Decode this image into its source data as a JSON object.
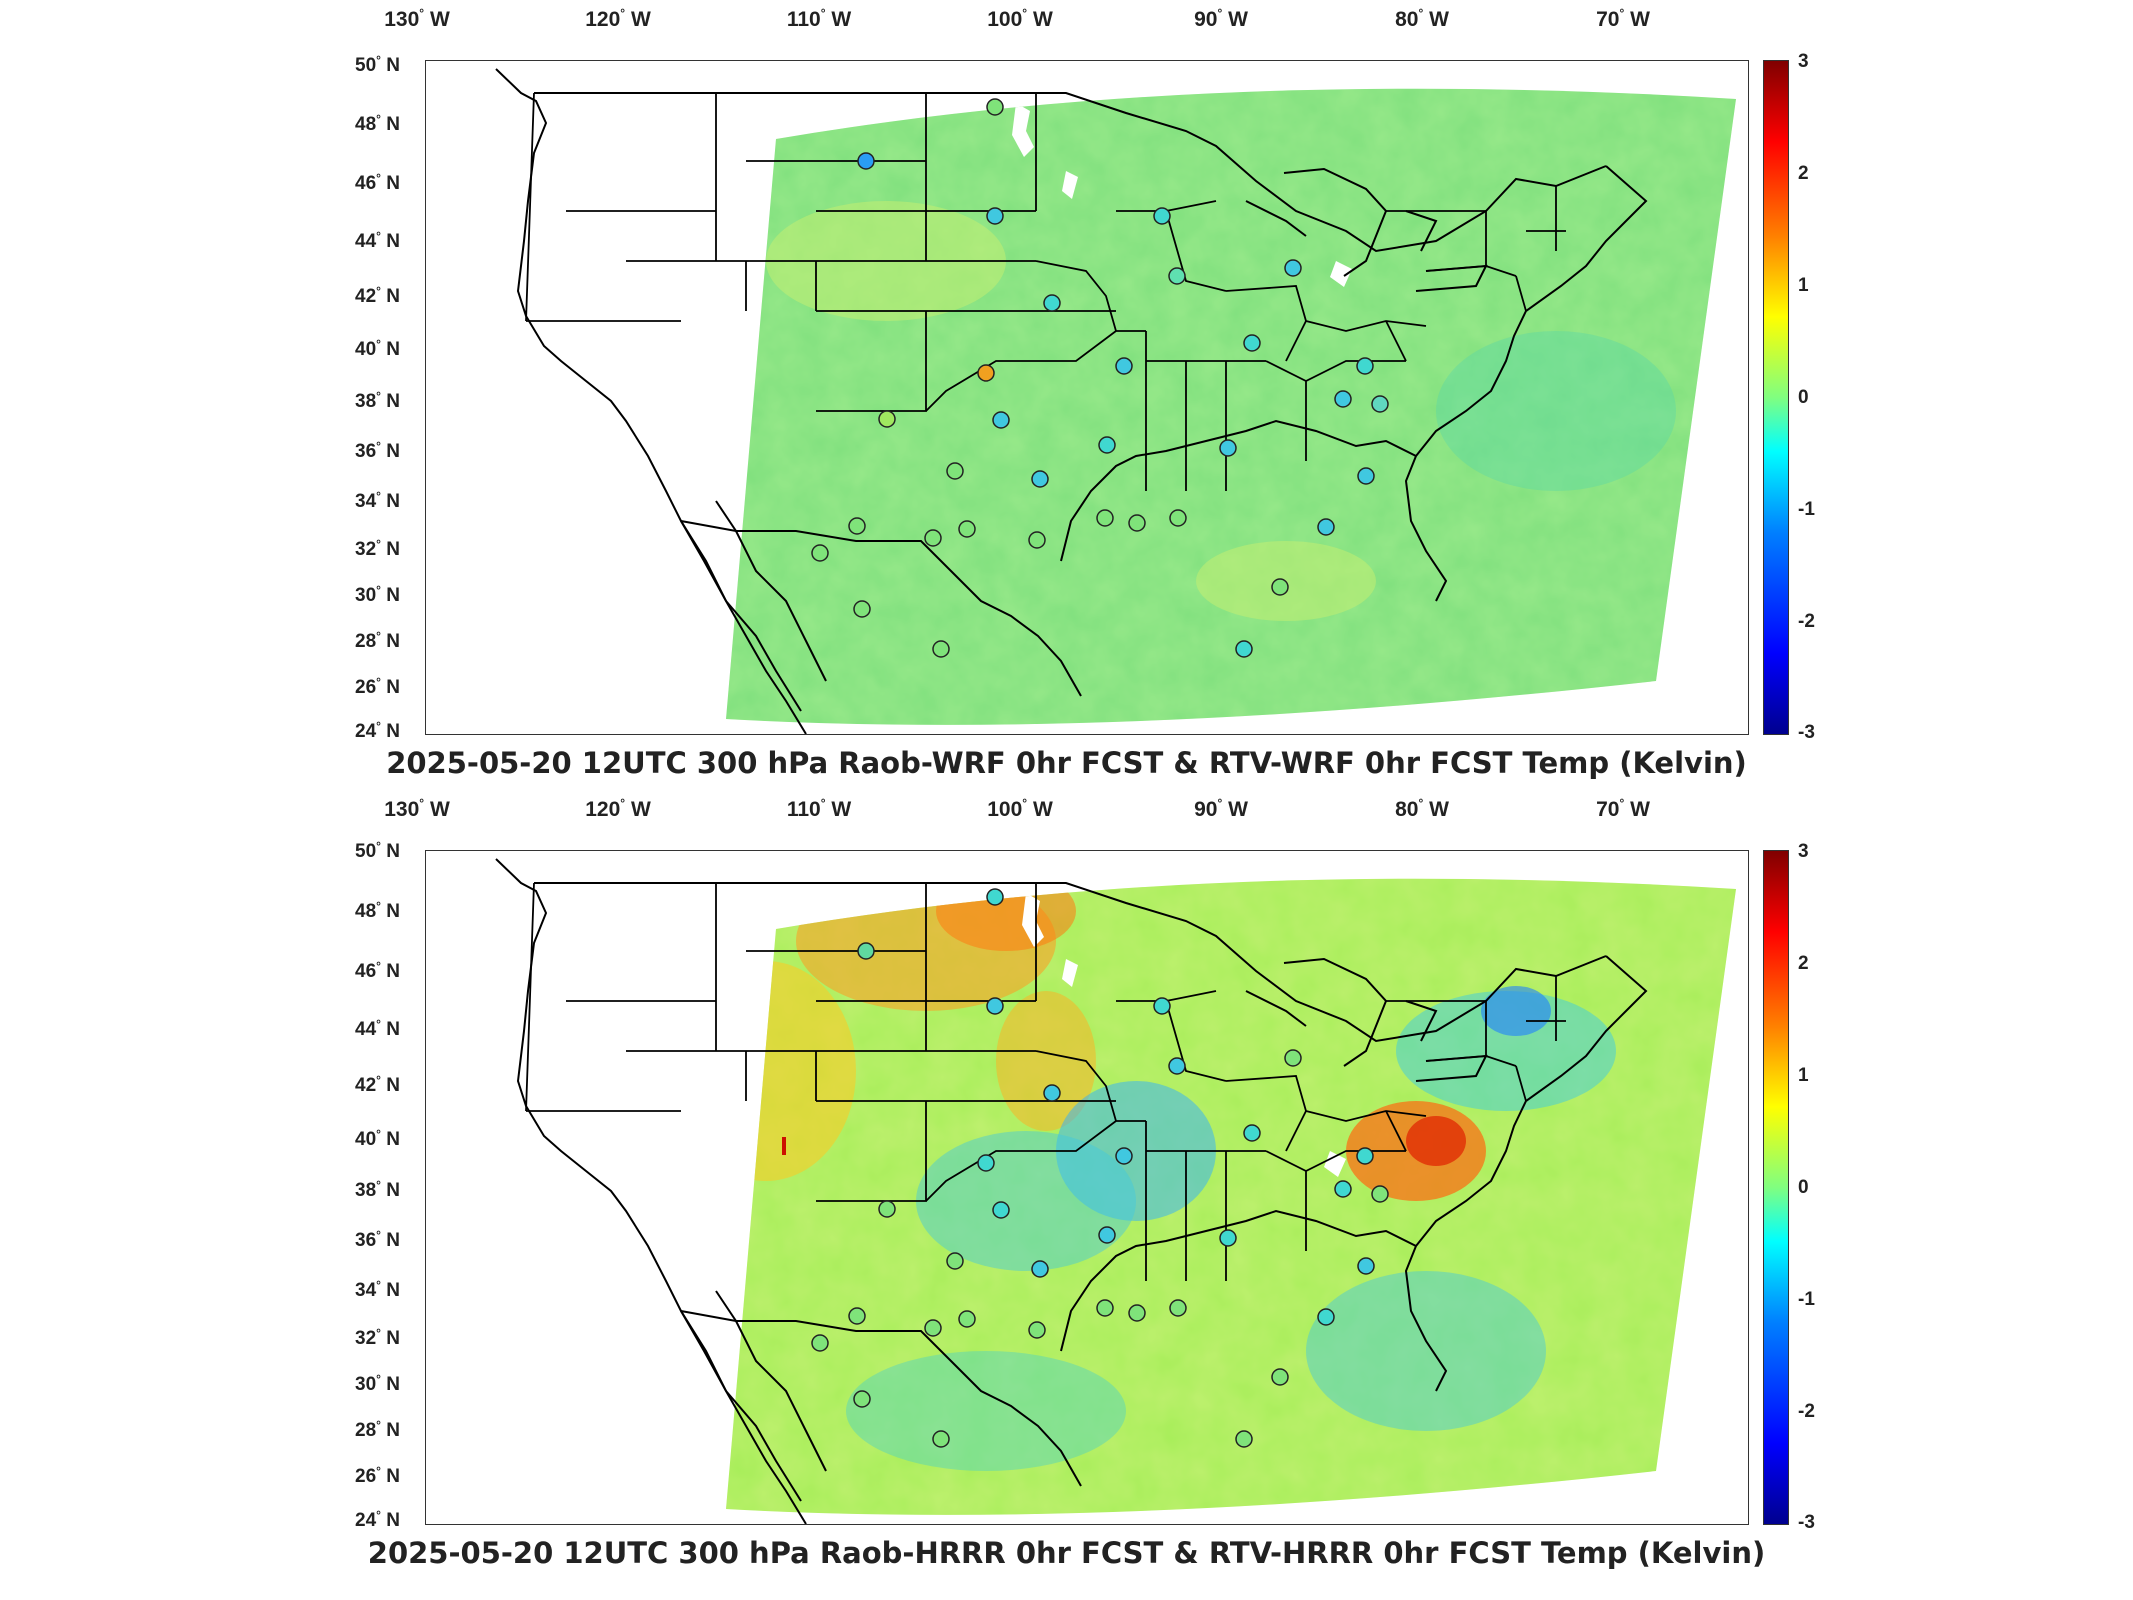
{
  "lon_labels": [
    "130",
    "120",
    "110",
    "100",
    "90",
    "80",
    "70"
  ],
  "lon_hemi": "W",
  "lat_labels": [
    "50",
    "48",
    "46",
    "44",
    "42",
    "40",
    "38",
    "36",
    "34",
    "32",
    "30",
    "28",
    "26",
    "24"
  ],
  "lat_hemi": "N",
  "colorbar": {
    "ticks": [
      "3",
      "2",
      "1",
      "0",
      "-1",
      "-2",
      "-3"
    ],
    "min": -3,
    "max": 3,
    "colormap": "jet"
  },
  "panels": [
    {
      "title": "2025-05-20 12UTC 300 hPa Raob-WRF 0hr FCST & RTV-WRF 0hr FCST Temp (Kelvin)",
      "field_base_color": "#7fe37a"
    },
    {
      "title": "2025-05-20 12UTC 300 hPa Raob-HRRR 0hr FCST & RTV-HRRR 0hr FCST Temp (Kelvin)",
      "field_base_color": "#a8ee5a"
    }
  ]
}
